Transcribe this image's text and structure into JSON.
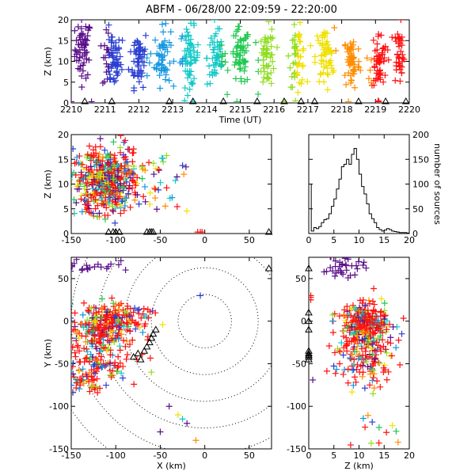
{
  "title": "ABFM - 06/28/00 22:09:59 - 22:20:00",
  "chart_data": [
    {
      "id": "time_height",
      "type": "scatter",
      "marker": "plus",
      "xlabel": "Time (UT)",
      "ylabel": "Z (km)",
      "xlim": [
        2210,
        2220
      ],
      "ylim": [
        0,
        20
      ],
      "xticks": [
        "2210",
        "2211",
        "2212",
        "2213",
        "2214",
        "2215",
        "2216",
        "2217",
        "2218",
        "2219",
        "2220"
      ],
      "yticks": [
        "0",
        "5",
        "10",
        "15",
        "20"
      ],
      "color_by": "time",
      "colormap": [
        "#5a0f8a",
        "#2a3fd0",
        "#1597e0",
        "#12c8c8",
        "#20c850",
        "#90dd20",
        "#f0e000",
        "#ff8c00",
        "#ff1010"
      ],
      "stations_x": [
        2210.4,
        2211.2,
        2212.9,
        2213.6,
        2214.5,
        2215.5,
        2216.3,
        2216.8,
        2217.2,
        2218.5,
        2219.3,
        2219.9
      ],
      "clusters": [
        {
          "t": 2210.35,
          "spread": 0.3,
          "z": 13,
          "n": 60
        },
        {
          "t": 2211.2,
          "spread": 0.35,
          "z": 10,
          "n": 70
        },
        {
          "t": 2212.0,
          "spread": 0.35,
          "z": 11,
          "n": 60
        },
        {
          "t": 2212.7,
          "spread": 0.3,
          "z": 11,
          "n": 55
        },
        {
          "t": 2213.5,
          "spread": 0.35,
          "z": 11,
          "n": 65
        },
        {
          "t": 2214.3,
          "spread": 0.35,
          "z": 11,
          "n": 60
        },
        {
          "t": 2215.0,
          "spread": 0.35,
          "z": 11,
          "n": 60
        },
        {
          "t": 2215.8,
          "spread": 0.3,
          "z": 11,
          "n": 55
        },
        {
          "t": 2216.7,
          "spread": 0.3,
          "z": 11,
          "n": 55
        },
        {
          "t": 2217.5,
          "spread": 0.35,
          "z": 11,
          "n": 60
        },
        {
          "t": 2218.3,
          "spread": 0.3,
          "z": 10,
          "n": 55
        },
        {
          "t": 2219.1,
          "spread": 0.3,
          "z": 10,
          "n": 60
        },
        {
          "t": 2219.7,
          "spread": 0.2,
          "z": 12,
          "n": 40
        }
      ],
      "ground_sources": [
        2210.0,
        2210.6,
        2213.6,
        2214.9,
        2216.3,
        2218.2,
        2219.1
      ]
    },
    {
      "id": "x_z",
      "type": "scatter",
      "marker": "plus",
      "xlabel": "",
      "ylabel": "Z (km)",
      "xlim": [
        -150,
        75
      ],
      "ylim": [
        0,
        20
      ],
      "xticks": [
        "-150",
        "-100",
        "-50",
        "0",
        "50"
      ],
      "yticks": [
        "0",
        "5",
        "10",
        "15",
        "20"
      ],
      "center": {
        "x": -110,
        "z": 10.5
      },
      "stations_x": [
        -108,
        -103,
        -100,
        -96,
        -65,
        -62,
        -60,
        -58,
        72
      ],
      "ground_sources_x": [
        -8,
        -5,
        -3
      ]
    },
    {
      "id": "height_histogram",
      "type": "bar",
      "xlabel": "",
      "ylabel": "number of sources",
      "xlim": [
        0,
        20
      ],
      "ylim": [
        0,
        200
      ],
      "xticks": [
        "0",
        "5",
        "10",
        "15",
        "20"
      ],
      "yticks": [
        "0",
        "50",
        "100",
        "150",
        "200"
      ],
      "bin_width": 0.5,
      "bins_start": 0,
      "values": [
        100,
        5,
        12,
        10,
        14,
        22,
        28,
        30,
        40,
        55,
        70,
        90,
        110,
        135,
        140,
        150,
        140,
        160,
        172,
        150,
        120,
        95,
        80,
        60,
        40,
        30,
        22,
        12,
        8,
        5,
        7,
        10,
        8,
        5,
        4,
        3,
        2,
        2,
        2,
        1
      ]
    },
    {
      "id": "plan_view",
      "type": "scatter",
      "marker": "plus",
      "xlabel": "X (km)",
      "ylabel": "Y (km)",
      "xlim": [
        -150,
        75
      ],
      "ylim": [
        -150,
        75
      ],
      "xticks": [
        "-150",
        "-100",
        "-50",
        "0",
        "50"
      ],
      "yticks": [
        "-150",
        "-100",
        "-50",
        "0",
        "50"
      ],
      "range_rings_km": [
        30,
        60,
        90,
        120,
        150,
        180
      ],
      "ring_center": [
        0,
        0
      ],
      "stations": [
        [
          -80,
          -42
        ],
        [
          -75,
          -38
        ],
        [
          -72,
          -45
        ],
        [
          -68,
          -35
        ],
        [
          -65,
          -30
        ],
        [
          -62,
          -25
        ],
        [
          -60,
          -20
        ],
        [
          -58,
          -15
        ],
        [
          -55,
          -10
        ],
        [
          72,
          62
        ]
      ],
      "clusters": [
        {
          "x": -105,
          "y": 0,
          "sx": 22,
          "sy": 10,
          "n": 220
        },
        {
          "x": -118,
          "y": -35,
          "sx": 20,
          "sy": 20,
          "n": 180
        },
        {
          "x": -135,
          "y": -70,
          "sx": 10,
          "sy": 8,
          "n": 40
        },
        {
          "x": -130,
          "y": 65,
          "sx": 15,
          "sy": 6,
          "n": 20
        }
      ],
      "scattered": [
        [
          -30,
          -110
        ],
        [
          -25,
          -115
        ],
        [
          -40,
          -100
        ],
        [
          -20,
          -120
        ],
        [
          -50,
          -130
        ],
        [
          -10,
          -140
        ],
        [
          -5,
          30
        ],
        [
          -60,
          -60
        ]
      ]
    },
    {
      "id": "z_y",
      "type": "scatter",
      "marker": "plus",
      "xlabel": "Z (km)",
      "ylabel": "",
      "xlim": [
        0,
        20
      ],
      "ylim": [
        -150,
        75
      ],
      "xticks": [
        "0",
        "5",
        "10",
        "15",
        "20"
      ],
      "yticks": [
        "-150",
        "-100",
        "-50",
        "0",
        "50"
      ],
      "stations_y": [
        -45,
        -42,
        -40,
        -38,
        -35,
        -10,
        0,
        10,
        62
      ],
      "ground_sources_y": [
        25,
        28,
        30
      ],
      "clusters": [
        {
          "z": 11,
          "y": 0,
          "sz": 2.2,
          "sy": 10,
          "n": 220
        },
        {
          "z": 11,
          "y": -35,
          "sz": 3,
          "sy": 20,
          "n": 190
        },
        {
          "z": 7,
          "y": 62,
          "sz": 2,
          "sy": 6,
          "n": 35
        }
      ]
    }
  ]
}
